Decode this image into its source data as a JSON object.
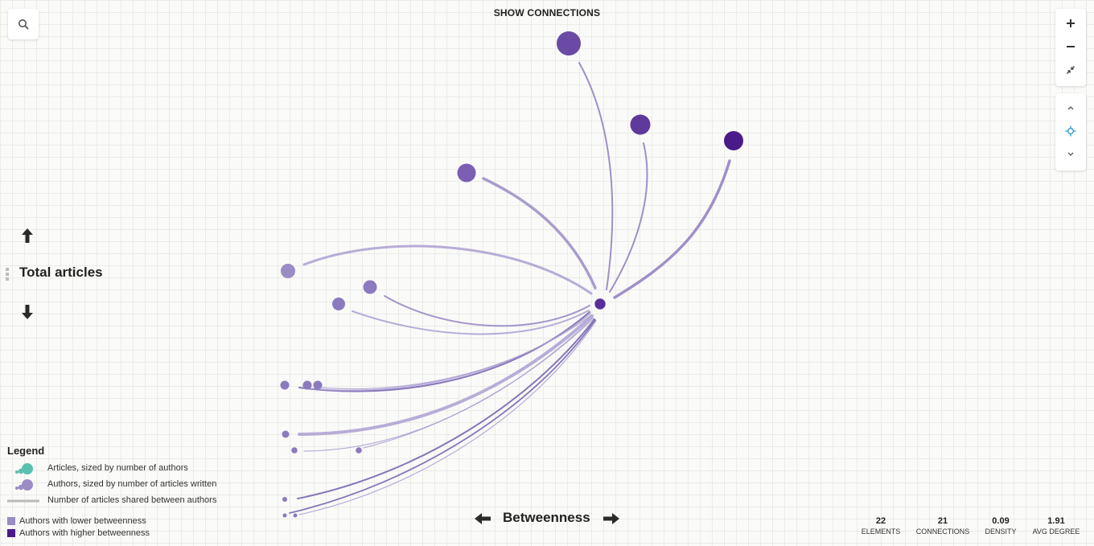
{
  "header": {
    "title": "SHOW CONNECTIONS"
  },
  "controls": {
    "search_icon": "search-icon",
    "zoom_in_icon": "plus-icon",
    "zoom_out_icon": "minus-icon",
    "fit_icon": "collapse-icon",
    "up_icon": "chevron-up-icon",
    "center_icon": "crosshair-icon",
    "down_icon": "chevron-down-icon"
  },
  "axes": {
    "y_title": "Total articles",
    "x_title": "Betweenness"
  },
  "legend": {
    "title": "Legend",
    "items": [
      {
        "label": "Articles, sized by number of authors"
      },
      {
        "label": "Authors, sized by number of articles written"
      },
      {
        "label": "Number of articles shared between authors"
      },
      {
        "label": "Authors with lower betweenness"
      },
      {
        "label": "Authors with higher betweenness"
      }
    ]
  },
  "stats": [
    {
      "value": "22",
      "label": "ELEMENTS"
    },
    {
      "value": "21",
      "label": "CONNECTIONS"
    },
    {
      "value": "0.09",
      "label": "DENSITY"
    },
    {
      "value": "1.91",
      "label": "AVG DEGREE"
    }
  ],
  "colors": {
    "article": "#5bc0b0",
    "author_low": "#9a8cc4",
    "author_high": "#4b1a8a",
    "edge": "#8f7dbf"
  }
}
